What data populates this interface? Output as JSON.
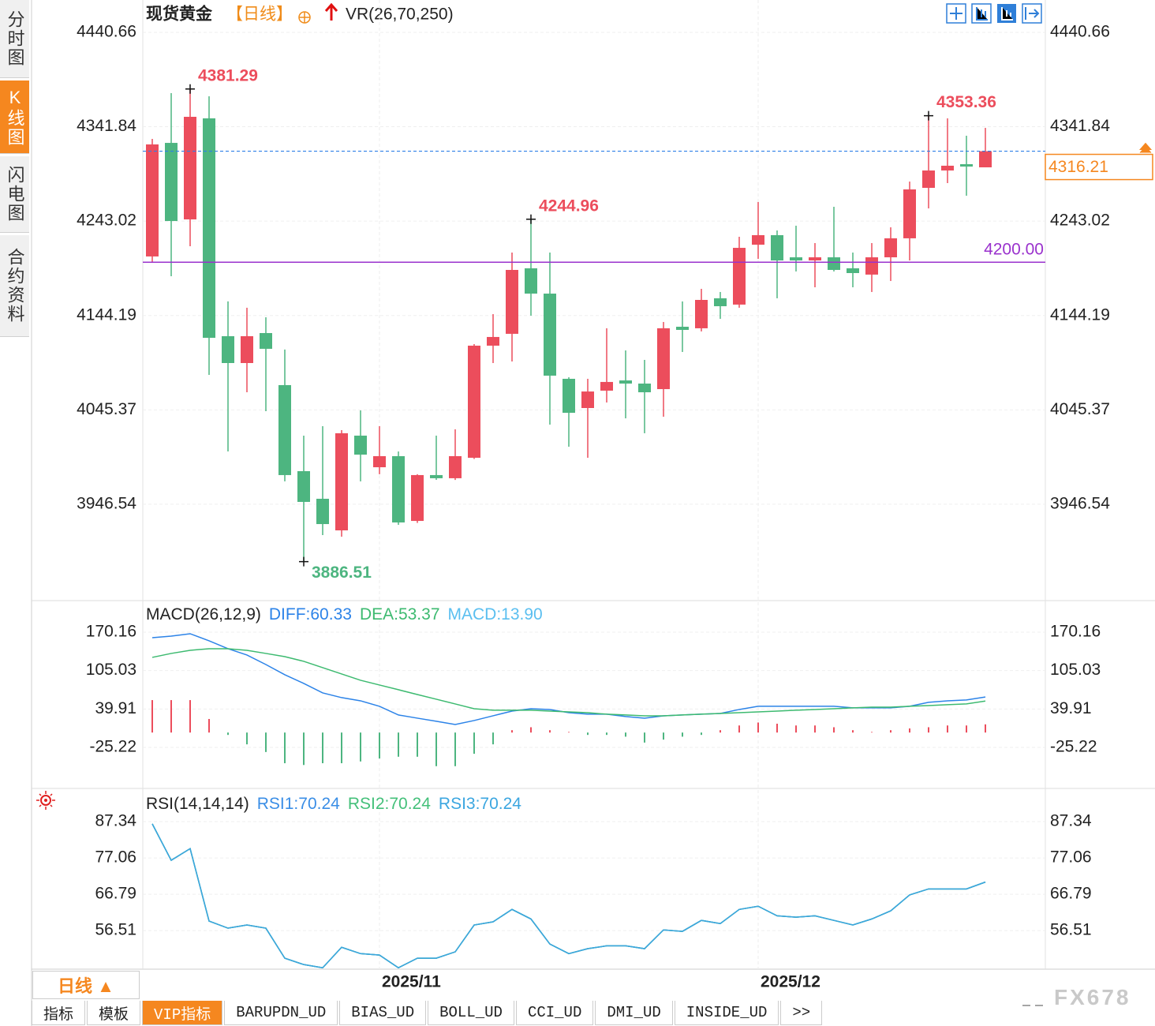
{
  "sidebar": {
    "items": [
      "分时图",
      "K线图",
      "闪电图",
      "合约资料"
    ],
    "active": 1
  },
  "chart_data": [
    {
      "type": "candlestick",
      "title": "现货黄金",
      "period": "【日线】",
      "indicator": "VR(26,70,250)",
      "categories": [
        null,
        null,
        null,
        null,
        null,
        null,
        null,
        null,
        null,
        null,
        null,
        null,
        "2025/11",
        null,
        null,
        null,
        null,
        null,
        null,
        null,
        null,
        null,
        null,
        null,
        null,
        null,
        null,
        null,
        null,
        null,
        null,
        null,
        "2025/12",
        null,
        null,
        null,
        null,
        null,
        null,
        null,
        null,
        null,
        null,
        null,
        null
      ],
      "open": [
        4206.0,
        4324.9,
        4244.8,
        4350.6,
        4122.5,
        4094.4,
        4125.8,
        4071.3,
        3981.2,
        3952.3,
        3919.2,
        4018.4,
        3985.3,
        3996.9,
        3929.1,
        3977.1,
        3973.8,
        3995.2,
        4112.6,
        4125.0,
        4193.6,
        4167.1,
        4077.9,
        4047.3,
        4065.5,
        4076.2,
        4072.9,
        4067.1,
        4132.4,
        4130.8,
        4162.2,
        4155.6,
        4218.3,
        4228.3,
        4205.1,
        4201.8,
        4205.1,
        4193.6,
        4187.0,
        4205.1,
        4225.0,
        4277.8,
        4296.0,
        4302.6,
        4299.3
      ],
      "high": [
        4329.1,
        4377.0,
        4381.29,
        4373.7,
        4158.9,
        4152.3,
        4142.3,
        4108.5,
        4018.4,
        4028.3,
        4024.2,
        4044.8,
        4028.3,
        4001.8,
        3978.0,
        4018.4,
        4025.0,
        4114.2,
        4145.6,
        4210.1,
        4244.96,
        4210.1,
        4079.5,
        4077.9,
        4130.8,
        4107.6,
        4097.7,
        4137.4,
        4158.9,
        4172.1,
        4168.8,
        4226.6,
        4263.0,
        4233.2,
        4238.2,
        4220.0,
        4258.0,
        4210.1,
        4220.0,
        4236.5,
        4284.4,
        4353.36,
        4350.6,
        4332.4,
        4340.6
      ],
      "low": [
        4199.3,
        4185.3,
        4216.7,
        4082.0,
        4001.8,
        4063.8,
        4044.0,
        3970.5,
        3886.51,
        3914.3,
        3912.6,
        3970.5,
        3978.0,
        3925.0,
        3927.0,
        3972.1,
        3972.0,
        3994.0,
        4094.4,
        4096.0,
        4144.0,
        4029.9,
        4006.8,
        3995.2,
        4053.1,
        4036.5,
        4020.9,
        4038.2,
        4106.0,
        4127.5,
        4140.7,
        4152.3,
        4203.5,
        4162.2,
        4190.3,
        4173.7,
        4190.3,
        4173.7,
        4168.8,
        4180.3,
        4201.8,
        4256.3,
        4282.8,
        4269.6,
        4299.3
      ],
      "close": [
        4323.3,
        4243.1,
        4352.2,
        4120.8,
        4094.4,
        4122.5,
        4109.3,
        3977.1,
        3949.0,
        3925.8,
        4020.9,
        3998.5,
        3996.9,
        3927.5,
        3977.1,
        3973.8,
        3996.9,
        4112.6,
        4121.7,
        4191.9,
        4167.1,
        4081.2,
        4042.3,
        4064.6,
        4074.6,
        4072.9,
        4063.8,
        4130.8,
        4129.1,
        4160.5,
        4153.9,
        4215.0,
        4228.3,
        4201.8,
        4201.8,
        4205.1,
        4191.9,
        4188.6,
        4205.1,
        4225.0,
        4276.2,
        4296.0,
        4301.0,
        4300.1,
        4316.21
      ],
      "up_color": "#ec4d5c",
      "down_color": "#4db580",
      "ylim": [
        3846.5,
        4474.5
      ],
      "yticks": [
        4440.66,
        4341.84,
        4243.02,
        4144.19,
        4045.37,
        3946.54
      ],
      "last_price": 4316.21,
      "hlines": [
        {
          "value": 4200,
          "label": "4200.00",
          "color": "#9a32cd"
        }
      ],
      "annotations": [
        4381.29,
        4244.96,
        4353.36,
        3886.51
      ]
    },
    {
      "type": "macd",
      "title": "MACD(26,12,9)",
      "up_color": "#ec4d5c",
      "down_color": "#4db580",
      "series": [
        {
          "name": "DIFF:60.33",
          "color": "#2c83e8",
          "values": [
            160.8,
            163.5,
            167.5,
            155.5,
            142.1,
            131.4,
            115.3,
            98.0,
            83.3,
            67.2,
            59.2,
            53.8,
            44.5,
            29.8,
            24.4,
            19.1,
            13.7,
            20.4,
            28.4,
            36.4,
            40.4,
            39.1,
            33.7,
            31.1,
            31.1,
            27.1,
            24.4,
            28.4,
            29.8,
            31.1,
            32.4,
            39.1,
            44.5,
            44.5,
            44.5,
            44.5,
            44.5,
            41.8,
            41.8,
            41.8,
            44.5,
            51.2,
            53.8,
            55.2,
            60.33
          ]
        },
        {
          "name": "DEA:53.37",
          "color": "#3dba70",
          "values": [
            127.4,
            134.1,
            139.4,
            142.1,
            142.1,
            139.4,
            134.1,
            128.7,
            120.7,
            110.0,
            99.3,
            88.6,
            80.6,
            72.6,
            64.5,
            56.5,
            48.5,
            40.4,
            37.8,
            37.8,
            37.8,
            36.4,
            35.1,
            33.7,
            31.1,
            29.8,
            28.4,
            28.4,
            29.8,
            31.1,
            32.4,
            33.7,
            35.1,
            36.4,
            37.8,
            39.1,
            40.4,
            41.8,
            43.1,
            43.1,
            44.5,
            45.8,
            47.2,
            48.5,
            53.37
          ]
        },
        {
          "name": "MACD:13.90",
          "color": "#5bbff0",
          "bars": true,
          "values": [
            55,
            55,
            55,
            23,
            -4,
            -20,
            -33,
            -52,
            -55,
            -52,
            -52,
            -49,
            -44,
            -41,
            -41,
            -57,
            -57,
            -36,
            -20,
            4,
            9,
            4,
            1,
            -4,
            -4,
            -7,
            -17,
            -12,
            -7,
            -4,
            4,
            12,
            17,
            15,
            12,
            12,
            9,
            4,
            1,
            4,
            7,
            9,
            12,
            12,
            13.9
          ]
        }
      ],
      "ylim": [
        -93.4,
        222.3
      ],
      "yticks": [
        170.16,
        105.03,
        39.91,
        -25.22
      ]
    },
    {
      "type": "line",
      "title": "RSI(14,14,14)",
      "series": [
        {
          "name": "RSI1:70.24",
          "color": "#3a8ee6",
          "values": [
            86.7,
            76.4,
            79.7,
            59.2,
            57.2,
            58.1,
            57.2,
            48.7,
            46.9,
            46.0,
            51.8,
            50.0,
            49.6,
            46.0,
            48.7,
            48.7,
            50.5,
            58.1,
            59.0,
            62.5,
            59.8,
            52.7,
            50.0,
            51.4,
            52.2,
            52.2,
            51.4,
            56.7,
            56.3,
            59.4,
            58.5,
            62.5,
            63.4,
            60.7,
            60.3,
            60.7,
            59.4,
            58.1,
            59.8,
            62.1,
            66.6,
            68.3,
            68.3,
            68.3,
            70.24
          ]
        },
        {
          "name": "RSI2:70.24",
          "color": "#44c07a",
          "values": [
            86.7,
            76.4,
            79.7,
            59.2,
            57.2,
            58.1,
            57.2,
            48.7,
            46.9,
            46.0,
            51.8,
            50.0,
            49.6,
            46.0,
            48.7,
            48.7,
            50.5,
            58.1,
            59.0,
            62.5,
            59.8,
            52.7,
            50.0,
            51.4,
            52.2,
            52.2,
            51.4,
            56.7,
            56.3,
            59.4,
            58.5,
            62.5,
            63.4,
            60.7,
            60.3,
            60.7,
            59.4,
            58.1,
            59.8,
            62.1,
            66.6,
            68.3,
            68.3,
            68.3,
            70.24
          ]
        },
        {
          "name": "RSI3:70.24",
          "color": "#3ba6e0",
          "values": [
            86.7,
            76.4,
            79.7,
            59.2,
            57.2,
            58.1,
            57.2,
            48.7,
            46.9,
            46.0,
            51.8,
            50.0,
            49.6,
            46.0,
            48.7,
            48.7,
            50.5,
            58.1,
            59.0,
            62.5,
            59.8,
            52.7,
            50.0,
            51.4,
            52.2,
            52.2,
            51.4,
            56.7,
            56.3,
            59.4,
            58.5,
            62.5,
            63.4,
            60.7,
            60.3,
            60.7,
            59.4,
            58.1,
            59.8,
            62.1,
            66.6,
            68.3,
            68.3,
            68.3,
            70.24
          ]
        }
      ],
      "ylim": [
        45.6,
        96.5
      ],
      "yticks": [
        87.34,
        77.06,
        66.79,
        56.51
      ]
    }
  ],
  "period_button": "日线 ▲",
  "bottom_tabs": {
    "items": [
      "指标",
      "模板",
      "VIP指标",
      "BARUPDN_UD",
      "BIAS_UD",
      "BOLL_UD",
      "CCI_UD",
      "DMI_UD",
      "INSIDE_UD",
      ">>"
    ],
    "active": 2
  },
  "watermark": "FX678"
}
